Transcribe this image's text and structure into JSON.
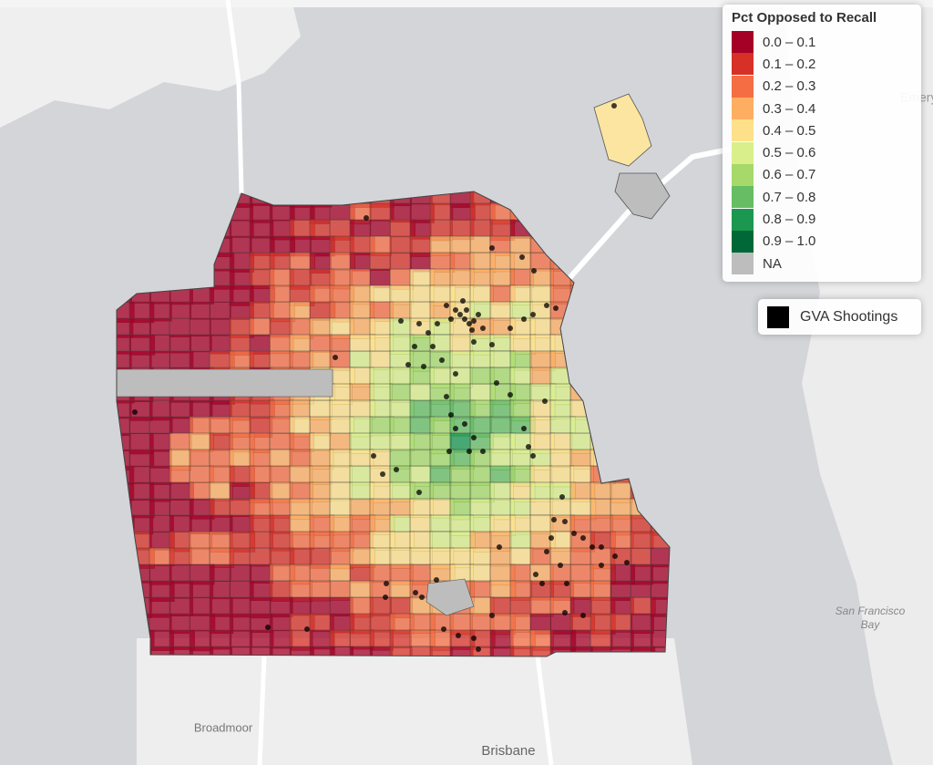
{
  "legend": {
    "title": "Pct Opposed to Recall",
    "items": [
      {
        "label": "0.0 – 0.1",
        "color": "#a50026"
      },
      {
        "label": "0.1 – 0.2",
        "color": "#d73027"
      },
      {
        "label": "0.2 – 0.3",
        "color": "#f46d43"
      },
      {
        "label": "0.3 – 0.4",
        "color": "#fdae61"
      },
      {
        "label": "0.4 – 0.5",
        "color": "#fee08b"
      },
      {
        "label": "0.5 – 0.6",
        "color": "#d9ef8b"
      },
      {
        "label": "0.6 – 0.7",
        "color": "#a6d96a"
      },
      {
        "label": "0.7 – 0.8",
        "color": "#66bd63"
      },
      {
        "label": "0.8 – 0.9",
        "color": "#1a9850"
      },
      {
        "label": "0.9 – 1.0",
        "color": "#006837"
      }
    ],
    "na": {
      "label": "NA",
      "color": "#bdbdbd"
    }
  },
  "points_legend": {
    "label": "GVA Shootings",
    "color": "#000000"
  },
  "map_labels": {
    "emery": "Emery",
    "bay": [
      "San Francisco",
      "Bay"
    ],
    "broadmoor": "Broadmoor",
    "brisbane": "Brisbane"
  }
}
